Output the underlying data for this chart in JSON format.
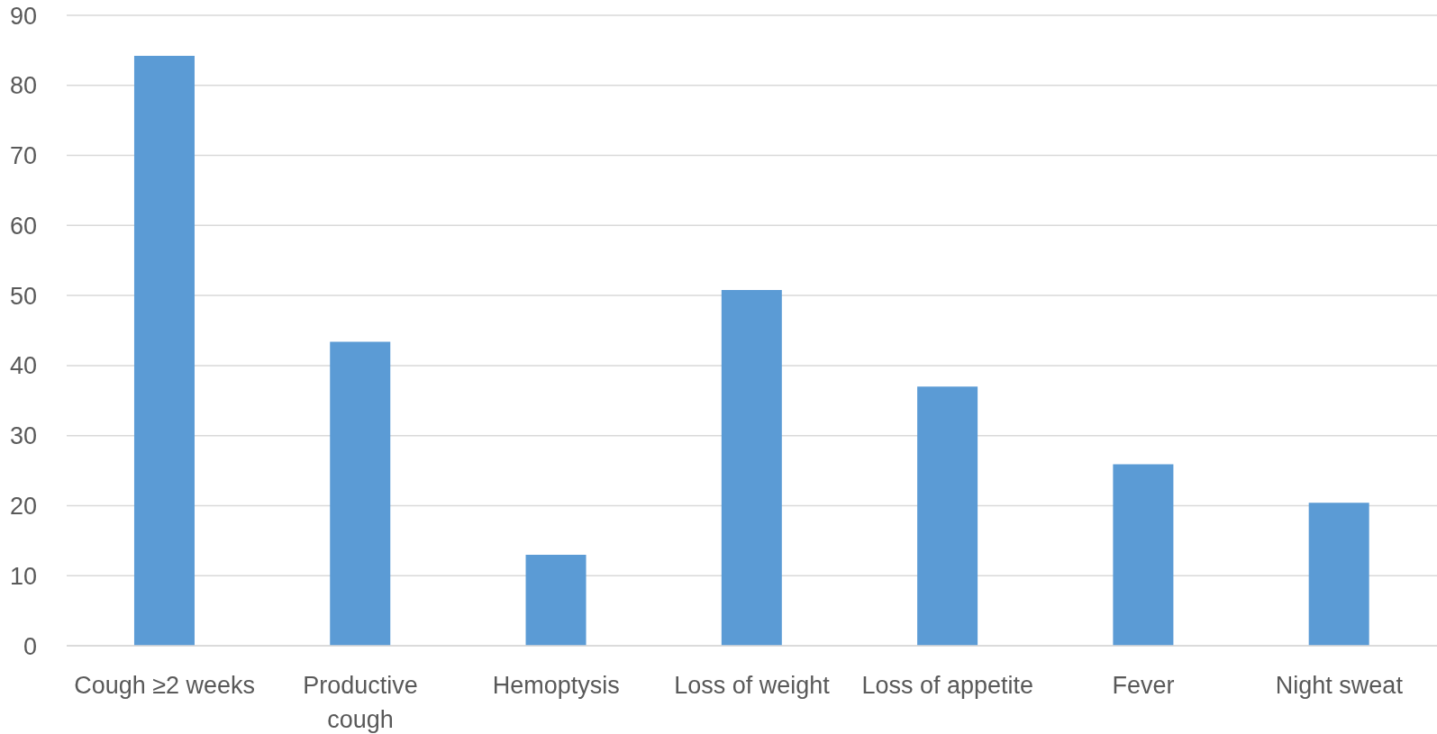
{
  "chart_data": {
    "type": "bar",
    "categories": [
      "Cough ≥2 weeks",
      "Productive cough",
      "Hemoptysis",
      "Loss of weight",
      "Loss of appetite",
      "Fever",
      "Night sweat"
    ],
    "values": [
      84.2,
      43.4,
      13,
      50.8,
      37,
      25.9,
      20.4
    ],
    "color": "#5b9bd5",
    "ylim": [
      0,
      90
    ],
    "yticks": [
      0,
      10,
      20,
      30,
      40,
      50,
      60,
      70,
      80,
      90
    ],
    "grid": "y"
  }
}
